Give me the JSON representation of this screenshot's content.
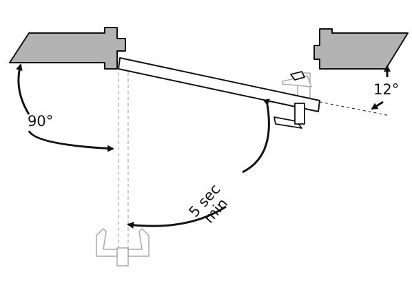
{
  "labels": {
    "angle_open": "90°",
    "angle_latch": "12°",
    "time_line1": "5 sec",
    "time_line2": "min"
  },
  "colors": {
    "wall_fill": "#b3b3b3",
    "stroke": "#111111",
    "ghost": "#a8a8a8",
    "door_fill": "#ffffff"
  }
}
